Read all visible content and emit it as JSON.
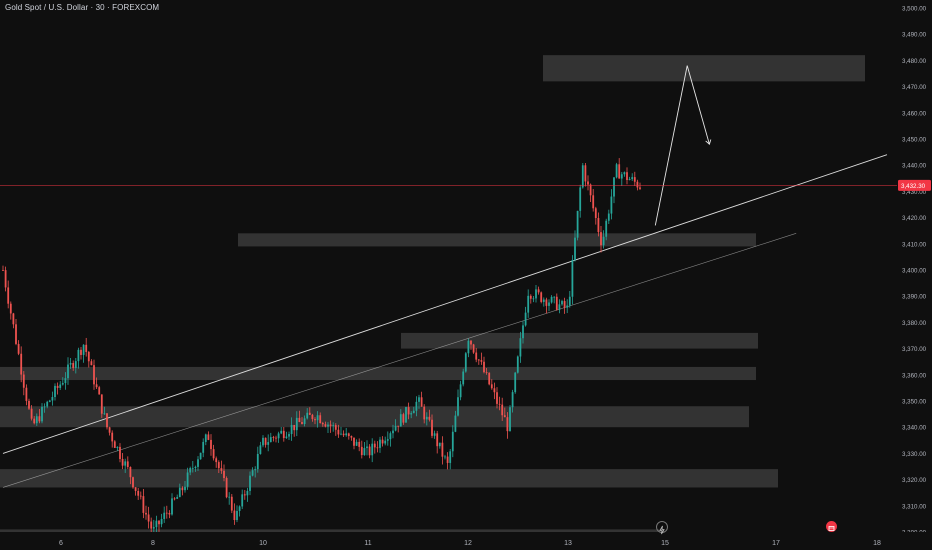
{
  "header": {
    "title": "Gold Spot / U.S. Dollar · 30 · FOREXCOM"
  },
  "price_axis": {
    "labels": [
      "3,500.00",
      "3,490.00",
      "3,480.00",
      "3,470.00",
      "3,460.00",
      "3,450.00",
      "3,440.00",
      "3,430.00",
      "3,420.00",
      "3,410.00",
      "3,400.00",
      "3,390.00",
      "3,380.00",
      "3,370.00",
      "3,360.00",
      "3,350.00",
      "3,340.00",
      "3,330.00",
      "3,320.00",
      "3,310.00",
      "3,300.00"
    ],
    "current_price_label": "3,432.30"
  },
  "time_axis": {
    "labels": [
      "6",
      "8",
      "10",
      "11",
      "12",
      "13",
      "15",
      "17",
      "18"
    ]
  },
  "chart_data": {
    "type": "candlestick",
    "title": "Gold Spot / U.S. Dollar · 30 · FOREXCOM",
    "ylim": [
      3300,
      3500
    ],
    "grid": false,
    "colors": {
      "up": "#26a69a",
      "down": "#ef5350",
      "zone": "#3a3a3a",
      "price_line": "#f23645",
      "drawing": "#e6e6e6"
    },
    "current_price": 3432.3,
    "x_ticks": [
      "6",
      "8",
      "10",
      "11",
      "12",
      "13",
      "15",
      "17",
      "18"
    ],
    "approx_path": [
      {
        "x": "5",
        "price": 3400
      },
      {
        "x": "5.5",
        "price": 3340
      },
      {
        "x": "6",
        "price": 3357
      },
      {
        "x": "6.5",
        "price": 3372
      },
      {
        "x": "7",
        "price": 3340
      },
      {
        "x": "7.5",
        "price": 3322
      },
      {
        "x": "8",
        "price": 3300
      },
      {
        "x": "8.5",
        "price": 3315
      },
      {
        "x": "9",
        "price": 3337
      },
      {
        "x": "9.5",
        "price": 3305
      },
      {
        "x": "10",
        "price": 3334
      },
      {
        "x": "10.5",
        "price": 3345
      },
      {
        "x": "11",
        "price": 3330
      },
      {
        "x": "11.5",
        "price": 3350
      },
      {
        "x": "11.8",
        "price": 3325
      },
      {
        "x": "12",
        "price": 3375
      },
      {
        "x": "12.4",
        "price": 3340
      },
      {
        "x": "12.6",
        "price": 3392
      },
      {
        "x": "13",
        "price": 3385
      },
      {
        "x": "13.3",
        "price": 3440
      },
      {
        "x": "13.7",
        "price": 3410
      },
      {
        "x": "14",
        "price": 3438
      },
      {
        "x": "14.5",
        "price": 3432
      }
    ],
    "zones": [
      {
        "from": 3472,
        "to": 3482
      },
      {
        "from": 3409,
        "to": 3414
      },
      {
        "from": 3370,
        "to": 3376
      },
      {
        "from": 3358,
        "to": 3363
      },
      {
        "from": 3340,
        "to": 3348
      },
      {
        "from": 3317,
        "to": 3324
      },
      {
        "from": 3300,
        "to": 3301
      }
    ],
    "drawings": [
      {
        "kind": "trendline",
        "from": {
          "x": "4.9",
          "price": 3330
        },
        "to": {
          "x": "18.1",
          "price": 3444
        }
      },
      {
        "kind": "trendline",
        "from": {
          "x": "4.9",
          "price": 3317
        },
        "to": {
          "x": "17.2",
          "price": 3414
        }
      },
      {
        "kind": "projection",
        "points": [
          {
            "x": "14.8",
            "price": 3417
          },
          {
            "x": "15.4",
            "price": 3478
          },
          {
            "x": "15.8",
            "price": 3448
          }
        ]
      }
    ]
  }
}
